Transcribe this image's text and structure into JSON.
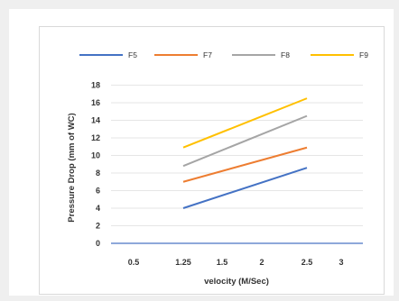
{
  "chart_data": {
    "type": "line",
    "title": "",
    "xlabel": "velocity (M/Sec)",
    "ylabel": "Pressure Drop (mm of WC)",
    "xticks": [
      "0.5",
      "1.25",
      "1.5",
      "2",
      "2.5",
      "3"
    ],
    "yticks": [
      "0",
      "2",
      "4",
      "6",
      "8",
      "10",
      "12",
      "14",
      "16",
      "18"
    ],
    "ylim": [
      0,
      18
    ],
    "grid": "horizontal",
    "legend_position": "top",
    "x": [
      "1.25",
      "2.5"
    ],
    "series": [
      {
        "name": "F5",
        "color": "#4472c4",
        "values": [
          4,
          8.6
        ]
      },
      {
        "name": "F7",
        "color": "#ed7d31",
        "values": [
          7,
          10.9
        ]
      },
      {
        "name": "F8",
        "color": "#a5a5a5",
        "values": [
          8.8,
          14.5
        ]
      },
      {
        "name": "F9",
        "color": "#ffc000",
        "values": [
          10.9,
          16.5
        ]
      }
    ]
  }
}
